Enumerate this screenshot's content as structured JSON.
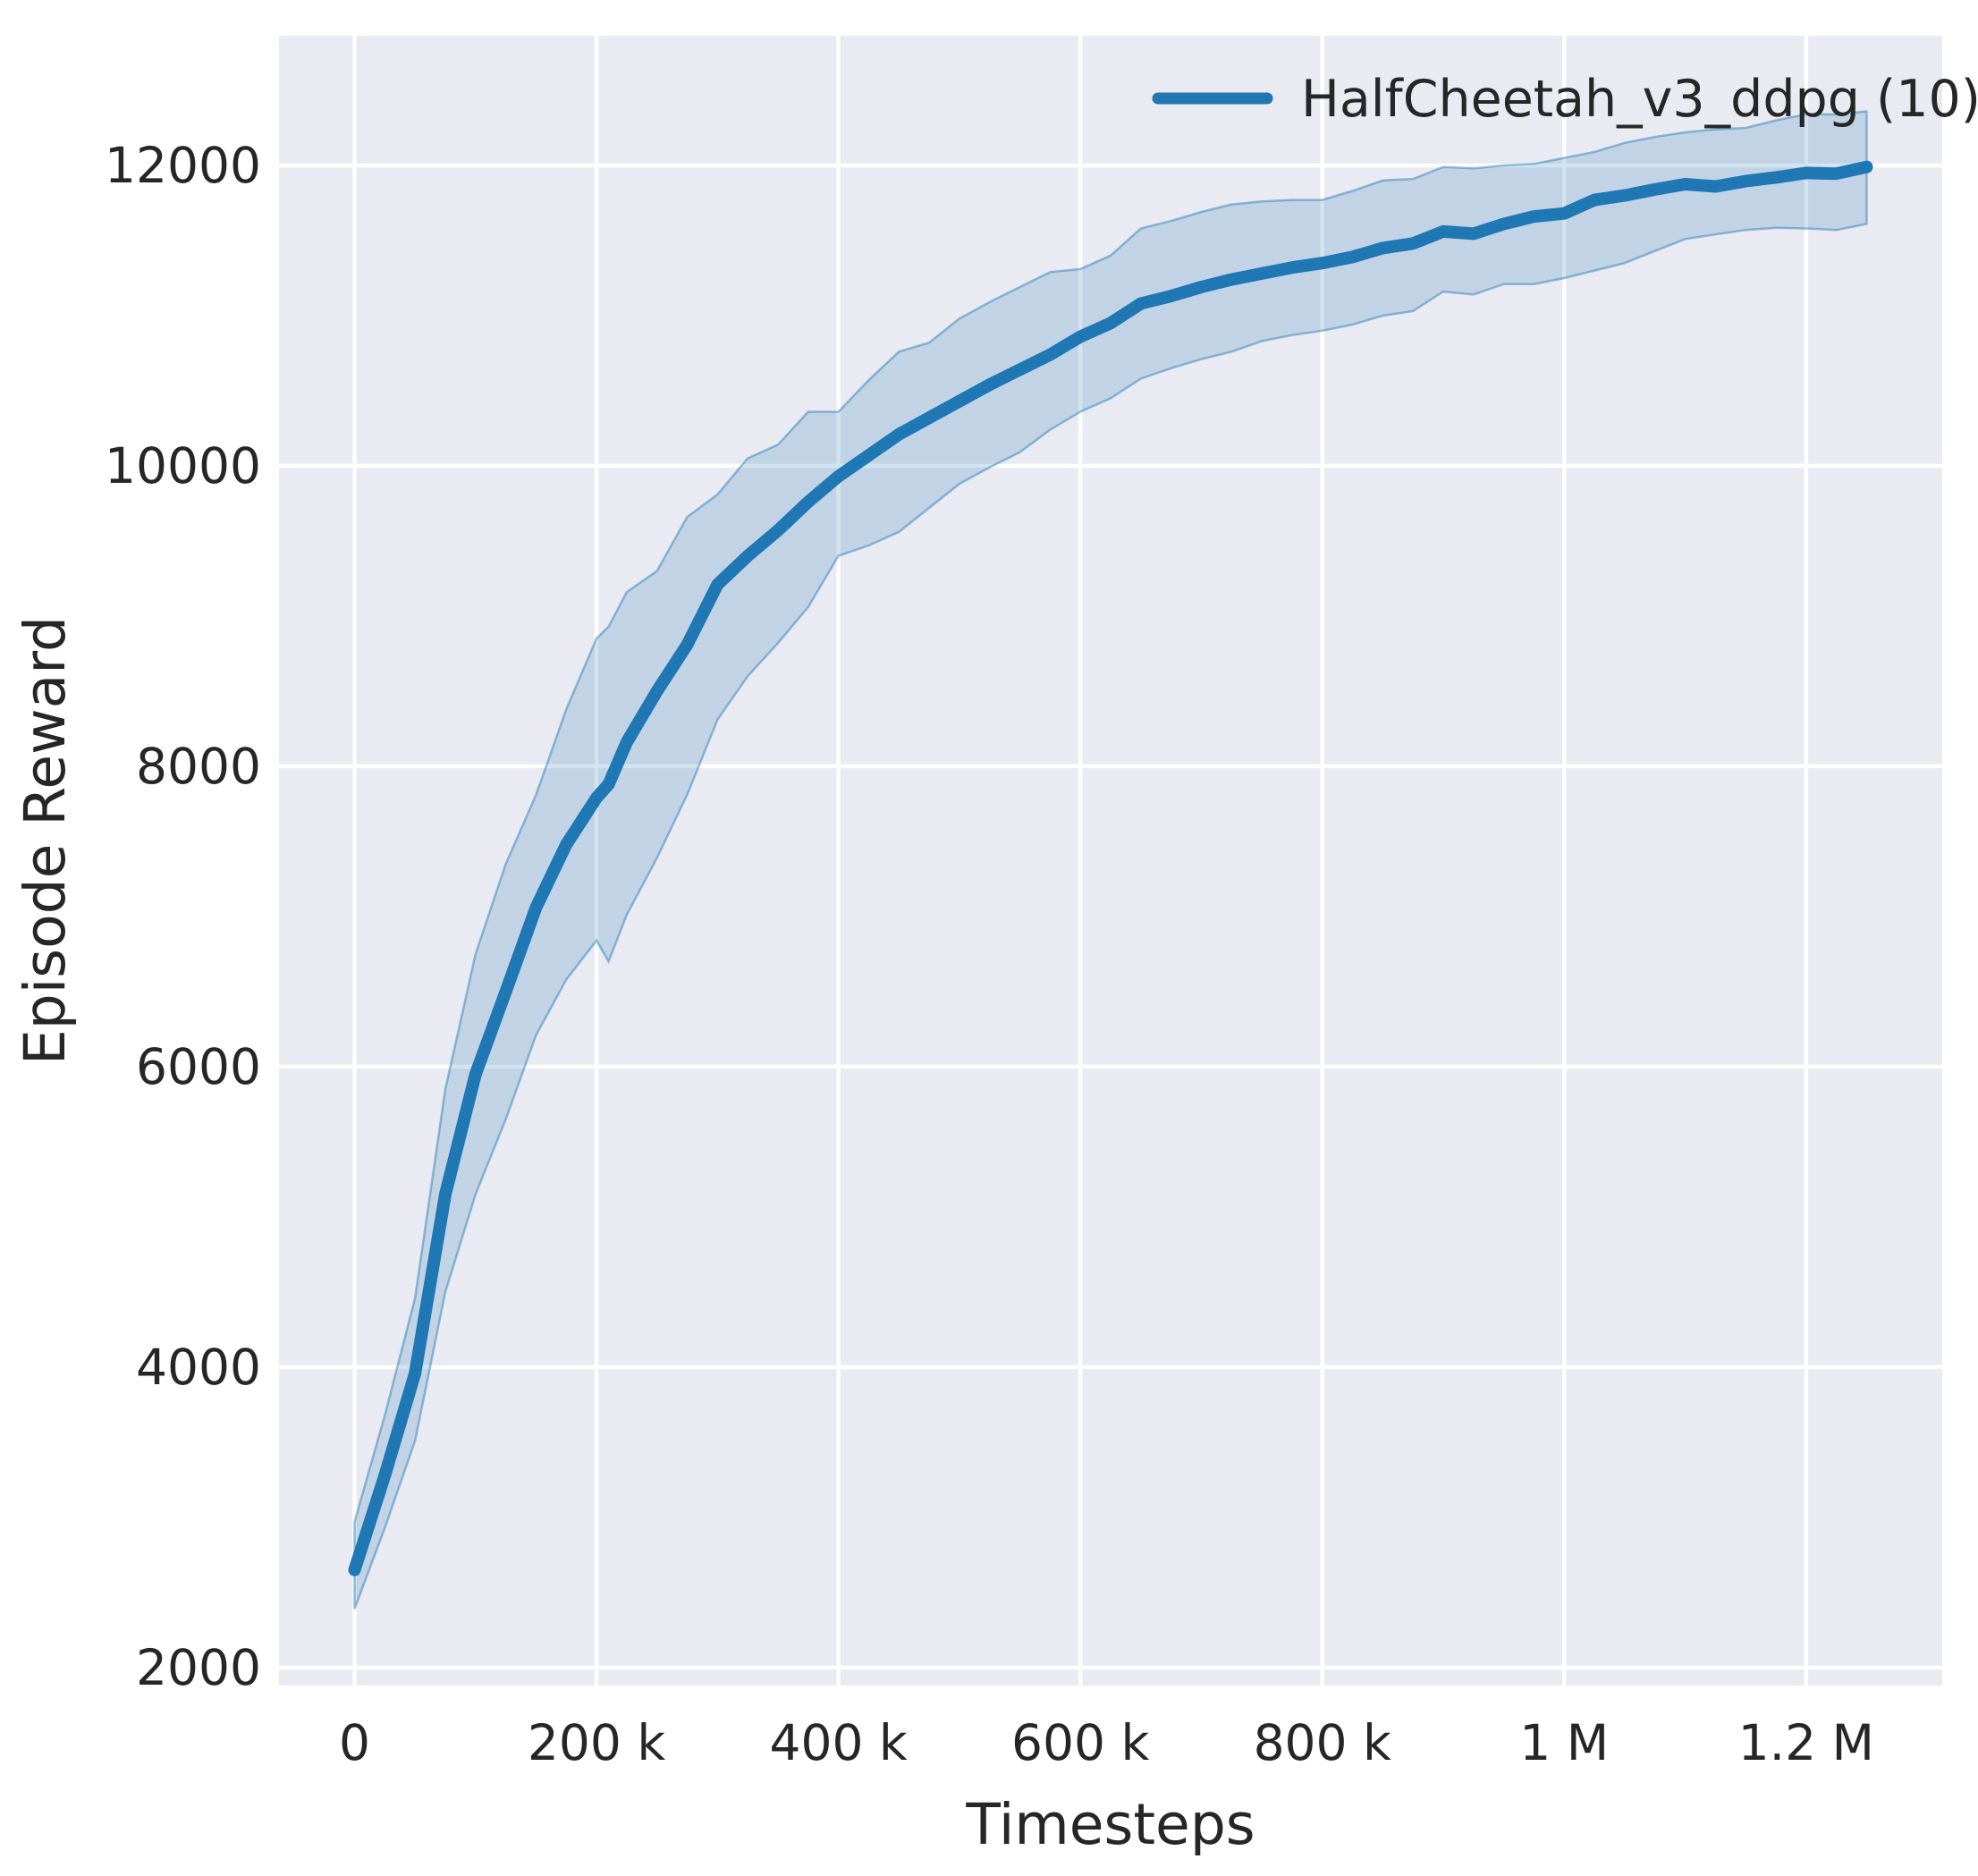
{
  "figure": {
    "xlabel": "Timesteps",
    "ylabel": "Episode Reward"
  },
  "legend": {
    "entry": "HalfCheetah_v3_ddpg (10)"
  },
  "colors": {
    "figure_bg": "#ffffff",
    "axes_bg": "#eaeaf2",
    "grid": "#ffffff",
    "text": "#262626",
    "line": "#1f77b4",
    "band_fill": "rgba(31,119,180,0.20)",
    "band_edge": "rgba(31,119,180,0.45)"
  },
  "chart_data": {
    "type": "line",
    "title": "",
    "xlabel": "Timesteps",
    "ylabel": "Episode Reward",
    "legend_entries": [
      "HalfCheetah_v3_ddpg (10)"
    ],
    "legend_position": "upper right",
    "grid": true,
    "xlim": [
      -62500,
      1312500
    ],
    "ylim": [
      1880,
      12863
    ],
    "x_ticks": [
      {
        "value": 0,
        "label": "0"
      },
      {
        "value": 200000,
        "label": "200 k"
      },
      {
        "value": 400000,
        "label": "400 k"
      },
      {
        "value": 600000,
        "label": "600 k"
      },
      {
        "value": 800000,
        "label": "800 k"
      },
      {
        "value": 1000000,
        "label": "1 M"
      },
      {
        "value": 1200000,
        "label": "1.2 M"
      }
    ],
    "y_ticks": [
      {
        "value": 2000,
        "label": "2000"
      },
      {
        "value": 4000,
        "label": "4000"
      },
      {
        "value": 6000,
        "label": "6000"
      },
      {
        "value": 8000,
        "label": "8000"
      },
      {
        "value": 10000,
        "label": "10000"
      },
      {
        "value": 12000,
        "label": "12000"
      }
    ],
    "series": [
      {
        "name": "HalfCheetah_v3_ddpg (10)",
        "x": [
          0,
          25000,
          50000,
          75000,
          100000,
          125000,
          150000,
          175000,
          200000,
          210000,
          225000,
          250000,
          275000,
          300000,
          325000,
          350000,
          375000,
          400000,
          425000,
          450000,
          475000,
          500000,
          525000,
          550000,
          575000,
          600000,
          625000,
          650000,
          675000,
          700000,
          725000,
          750000,
          775000,
          800000,
          825000,
          850000,
          875000,
          900000,
          925000,
          950000,
          975000,
          1000000,
          1025000,
          1050000,
          1075000,
          1100000,
          1125000,
          1150000,
          1175000,
          1200000,
          1225000,
          1250000
        ],
        "mean": [
          2650,
          3280,
          3960,
          5150,
          5950,
          6500,
          7060,
          7480,
          7790,
          7880,
          8160,
          8500,
          8810,
          9210,
          9400,
          9570,
          9760,
          9930,
          10070,
          10210,
          10320,
          10430,
          10540,
          10640,
          10740,
          10860,
          10950,
          11080,
          11130,
          11190,
          11240,
          11280,
          11320,
          11350,
          11390,
          11450,
          11480,
          11560,
          11545,
          11610,
          11660,
          11680,
          11770,
          11800,
          11840,
          11875,
          11860,
          11895,
          11920,
          11950,
          11945,
          11990
        ],
        "lower": [
          2390,
          2930,
          3510,
          4500,
          5150,
          5650,
          6210,
          6580,
          6840,
          6700,
          7010,
          7390,
          7810,
          8310,
          8600,
          8820,
          9060,
          9400,
          9470,
          9560,
          9720,
          9880,
          9990,
          10090,
          10240,
          10360,
          10450,
          10580,
          10650,
          10710,
          10760,
          10830,
          10870,
          10900,
          10940,
          11000,
          11030,
          11160,
          11140,
          11210,
          11210,
          11250,
          11300,
          11350,
          11430,
          11510,
          11540,
          11570,
          11585,
          11580,
          11570,
          11610
        ],
        "upper": [
          2970,
          3680,
          4460,
          5850,
          6750,
          7350,
          7810,
          8380,
          8850,
          8930,
          9160,
          9300,
          9660,
          9810,
          10050,
          10140,
          10360,
          10360,
          10570,
          10760,
          10820,
          10980,
          11090,
          11190,
          11290,
          11310,
          11400,
          11580,
          11630,
          11690,
          11740,
          11760,
          11770,
          11770,
          11830,
          11900,
          11910,
          11990,
          11980,
          12000,
          12010,
          12050,
          12090,
          12150,
          12190,
          12220,
          12240,
          12250,
          12300,
          12340,
          12340,
          12360
        ]
      }
    ]
  }
}
